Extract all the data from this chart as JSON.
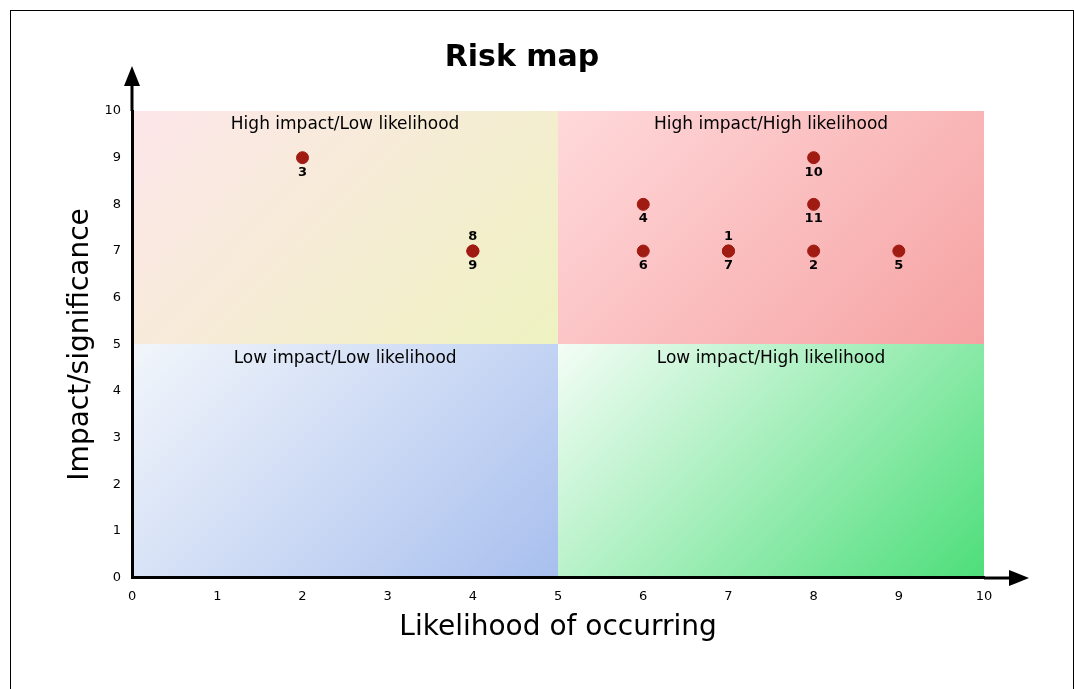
{
  "chart_data": {
    "type": "scatter",
    "title": "Risk map",
    "xlabel": "Likelihood of occurring",
    "ylabel": "Impact/significance",
    "series": [
      {
        "name": "1",
        "color": "#a01c12",
        "x": [
          7
        ],
        "values": [
          7
        ]
      },
      {
        "name": "2",
        "color": "#a01c12",
        "x": [
          8
        ],
        "values": [
          7
        ]
      },
      {
        "name": "3",
        "color": "#a01c12",
        "x": [
          2
        ],
        "values": [
          9
        ]
      },
      {
        "name": "4",
        "color": "#a01c12",
        "x": [
          6
        ],
        "values": [
          8
        ]
      },
      {
        "name": "5",
        "color": "#a01c12",
        "x": [
          9
        ],
        "values": [
          7
        ]
      },
      {
        "name": "6",
        "color": "#a01c12",
        "x": [
          6
        ],
        "values": [
          7
        ]
      },
      {
        "name": "7",
        "color": "#a01c12",
        "x": [
          7
        ],
        "values": [
          7
        ]
      },
      {
        "name": "8",
        "color": "#a01c12",
        "x": [
          4
        ],
        "values": [
          7
        ]
      },
      {
        "name": "9",
        "color": "#a01c12",
        "x": [
          4
        ],
        "values": [
          7
        ]
      },
      {
        "name": "10",
        "color": "#a01c12",
        "x": [
          8
        ],
        "values": [
          9
        ]
      },
      {
        "name": "11",
        "color": "#a01c12",
        "x": [
          8
        ],
        "values": [
          8
        ]
      }
    ],
    "marker": "circle",
    "xlim": [
      0,
      10
    ],
    "xticks": [
      0,
      1,
      2,
      3,
      4,
      5,
      6,
      7,
      8,
      9,
      10
    ],
    "ylim": [
      0,
      10
    ],
    "yticks": [
      0,
      1,
      2,
      3,
      4,
      5,
      6,
      7,
      8,
      9,
      10
    ],
    "grid": false,
    "legend": false,
    "annotations": [
      "High impact/Low likelihood",
      "High impact/High likelihood",
      "Low impact/Low likelihood",
      "Low impact/High likelihood"
    ]
  }
}
